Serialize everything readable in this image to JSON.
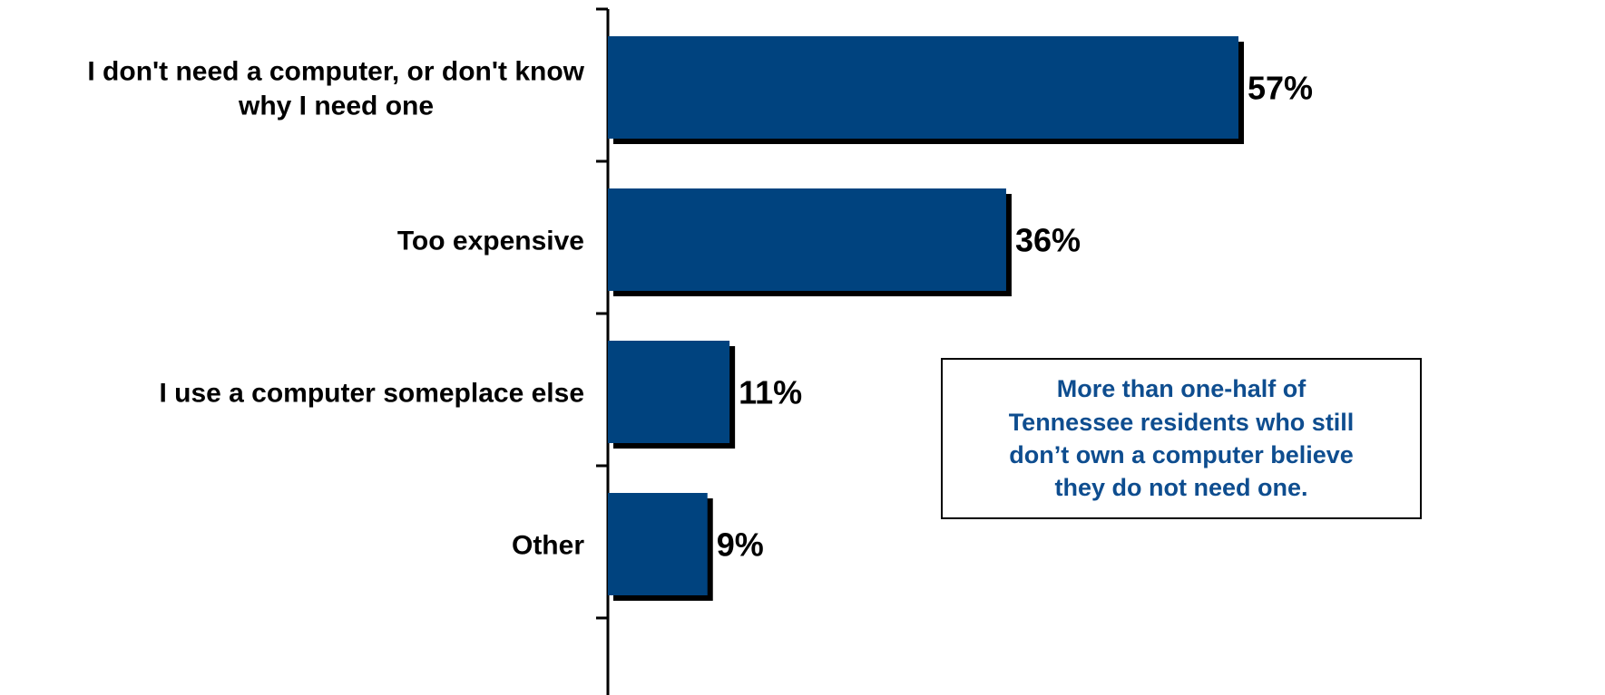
{
  "chart_data": {
    "type": "bar",
    "orientation": "horizontal",
    "categories": [
      "I don't need a computer, or don't know why I need one",
      "Too expensive",
      "I use a computer someplace else",
      "Other"
    ],
    "values": [
      57,
      36,
      11,
      9
    ],
    "value_labels": [
      "57%",
      "36%",
      "11%",
      "9%"
    ],
    "xlim": [
      0,
      57
    ],
    "bar_color": "#00437f",
    "grid": false,
    "legend": "none"
  },
  "annotation": {
    "text": "More than one-half of\nTennessee residents who still\ndon’t own a computer believe\nthey do not need one.",
    "color": "#0e4d8f"
  }
}
